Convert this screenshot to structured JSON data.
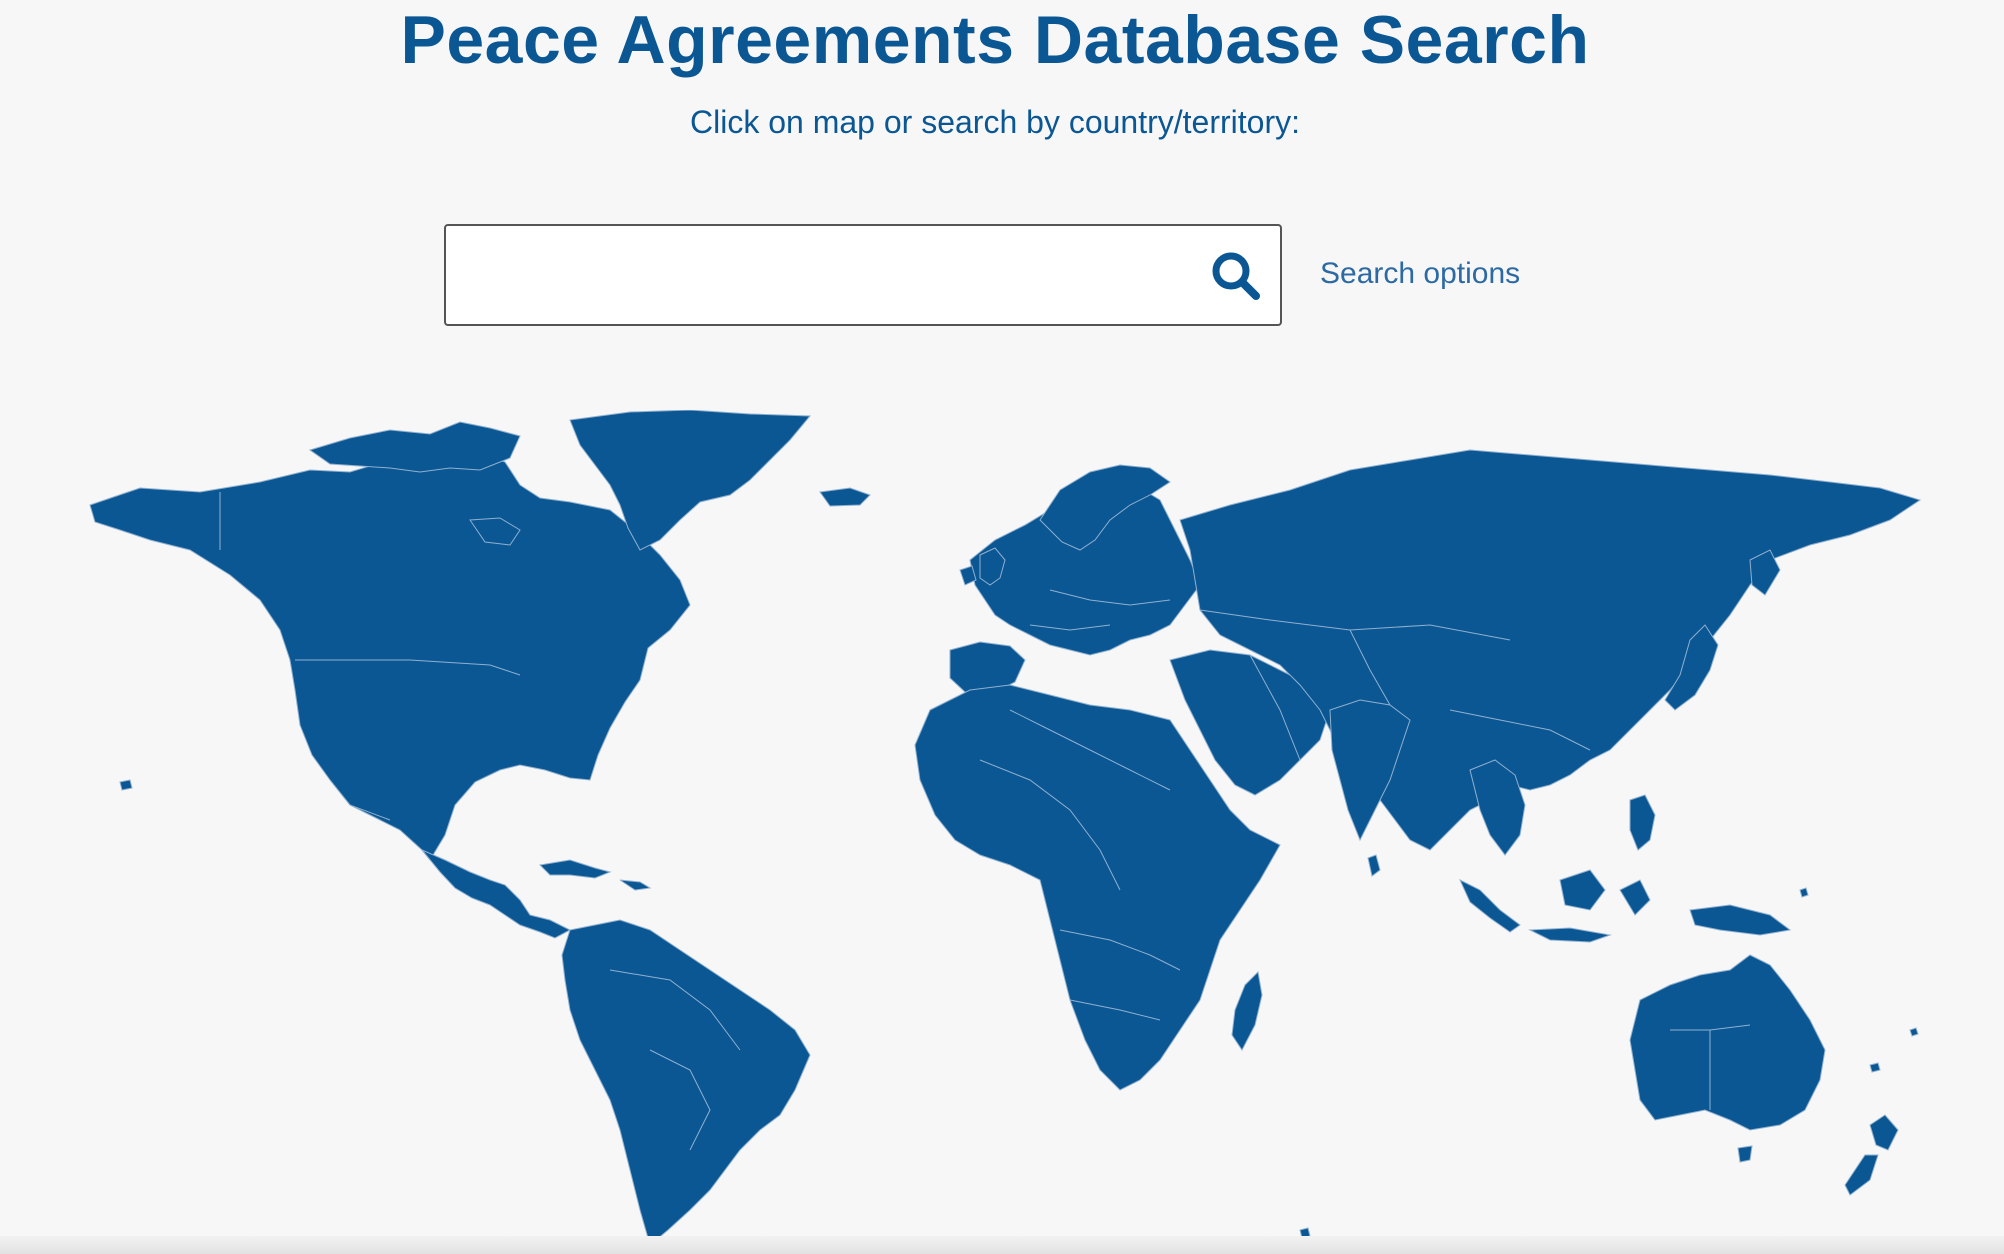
{
  "header": {
    "title": "Peace Agreements Database Search",
    "subtitle": "Click on map or search by country/territory:"
  },
  "search": {
    "value": "",
    "placeholder": "",
    "icon": "search-icon",
    "options_label": "Search options"
  },
  "map": {
    "fill_color": "#0b5794",
    "border_color": "#8fb0cf",
    "background_color": "#f7f7f7"
  }
}
